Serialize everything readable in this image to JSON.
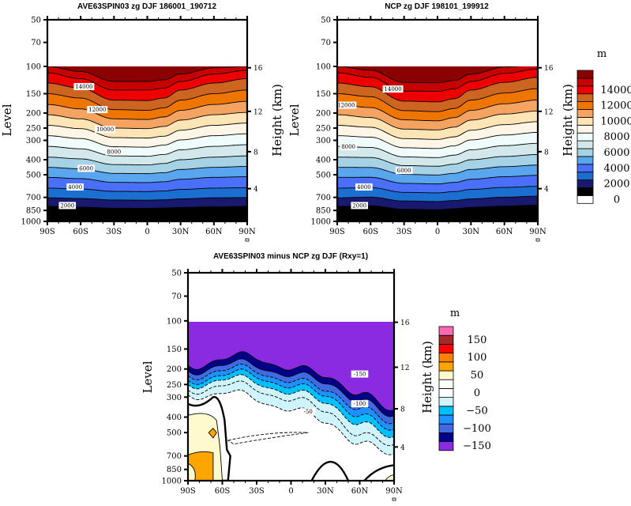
{
  "chart_data": [
    {
      "type": "heatmap",
      "name": "model-panel",
      "title": "AVE63SPIN03 zg DJF 186001_190712",
      "xlabel": "",
      "ylabel": "Level",
      "y2label": "Height (km)",
      "x_ticks": [
        "90S",
        "60S",
        "30S",
        "0",
        "30N",
        "60N",
        "90N"
      ],
      "x_values": [
        -90,
        -60,
        -30,
        0,
        30,
        60,
        90
      ],
      "y_ticks": [
        50,
        70,
        100,
        150,
        200,
        250,
        300,
        400,
        500,
        700,
        850,
        1000
      ],
      "y2_ticks": [
        4,
        8,
        12,
        16
      ],
      "ylim": [
        1000,
        50
      ],
      "yscale": "log",
      "data_top_level": 100,
      "grid": false,
      "variable": "zg (geopotential height, m)",
      "contour_interval": 1000,
      "contour_labels": [
        {
          "text": "14000",
          "lat": -57,
          "lev": 135
        },
        {
          "text": "12000",
          "lat": -45,
          "lev": 190
        },
        {
          "text": "10000",
          "lat": -38,
          "lev": 255
        },
        {
          "text": "8000",
          "lat": -30,
          "lev": 355
        },
        {
          "text": "6000",
          "lat": -55,
          "lev": 455
        },
        {
          "text": "4000",
          "lat": -65,
          "lev": 600
        },
        {
          "text": "2000",
          "lat": -72,
          "lev": 790
        }
      ],
      "profile_lat": [
        -90,
        -60,
        -30,
        0,
        15,
        30,
        60,
        90
      ],
      "profile_note": "contour heights at equator/poles: level of each isoline",
      "isolines": [
        {
          "value": 16000,
          "lev": [
            100,
            108,
            125,
            125,
            122,
            112,
            102,
            100
          ]
        },
        {
          "value": 15000,
          "lev": [
            110,
            120,
            142,
            142,
            138,
            125,
            112,
            106
          ]
        },
        {
          "value": 14000,
          "lev": [
            128,
            138,
            165,
            166,
            160,
            142,
            128,
            120
          ]
        },
        {
          "value": 13000,
          "lev": [
            150,
            160,
            190,
            192,
            185,
            165,
            150,
            142
          ]
        },
        {
          "value": 12000,
          "lev": [
            176,
            188,
            218,
            220,
            212,
            192,
            176,
            168
          ]
        },
        {
          "value": 11000,
          "lev": [
            205,
            218,
            250,
            252,
            244,
            222,
            205,
            198
          ]
        },
        {
          "value": 10000,
          "lev": [
            240,
            252,
            288,
            290,
            282,
            258,
            240,
            232
          ]
        },
        {
          "value": 9000,
          "lev": [
            280,
            292,
            330,
            332,
            322,
            298,
            280,
            272
          ]
        },
        {
          "value": 8000,
          "lev": [
            328,
            340,
            378,
            380,
            370,
            345,
            328,
            320
          ]
        },
        {
          "value": 7000,
          "lev": [
            385,
            395,
            430,
            432,
            423,
            400,
            385,
            378
          ]
        },
        {
          "value": 6000,
          "lev": [
            448,
            458,
            490,
            492,
            485,
            462,
            448,
            442
          ]
        },
        {
          "value": 5000,
          "lev": [
            520,
            530,
            560,
            562,
            555,
            535,
            520,
            515
          ]
        },
        {
          "value": 4000,
          "lev": [
            610,
            618,
            640,
            642,
            636,
            622,
            610,
            606
          ]
        },
        {
          "value": 3000,
          "lev": [
            705,
            712,
            728,
            730,
            726,
            716,
            705,
            702
          ]
        },
        {
          "value": 2000,
          "lev": [
            800,
            810,
            822,
            824,
            820,
            812,
            805,
            800
          ]
        },
        {
          "value": 1000,
          "lev": [
            905,
            910,
            922,
            924,
            920,
            914,
            908,
            905
          ]
        }
      ]
    },
    {
      "type": "heatmap",
      "name": "reference-panel",
      "title": "NCP zg DJF 198101_199912",
      "xlabel": "",
      "ylabel": "Level",
      "y2label": "Height (km)",
      "x_ticks": [
        "90S",
        "60S",
        "30S",
        "0",
        "30N",
        "60N",
        "90N"
      ],
      "x_values": [
        -90,
        -60,
        -30,
        0,
        30,
        60,
        90
      ],
      "y_ticks": [
        50,
        70,
        100,
        150,
        200,
        250,
        300,
        400,
        500,
        700,
        850,
        1000
      ],
      "y2_ticks": [
        4,
        8,
        12,
        16
      ],
      "ylim": [
        1000,
        50
      ],
      "yscale": "log",
      "data_top_level": 100,
      "grid": false,
      "variable": "zg (geopotential height, m)",
      "contour_interval": 1000,
      "contour_labels": [
        {
          "text": "14000",
          "lat": -40,
          "lev": 140
        },
        {
          "text": "12000",
          "lat": -82,
          "lev": 178
        },
        {
          "text": "8000",
          "lat": -80,
          "lev": 330
        },
        {
          "text": "6000",
          "lat": -30,
          "lev": 470
        },
        {
          "text": "4000",
          "lat": -66,
          "lev": 600
        },
        {
          "text": "2000",
          "lat": -70,
          "lev": 790
        }
      ],
      "colorbar": {
        "units": "m",
        "levels": [
          0,
          1000,
          2000,
          3000,
          4000,
          5000,
          6000,
          7000,
          8000,
          9000,
          10000,
          11000,
          12000,
          13000,
          14000,
          15000
        ],
        "labels": [
          "0",
          "2000",
          "4000",
          "6000",
          "8000",
          "10000",
          "12000",
          "14000"
        ],
        "colors": [
          "#ffffff",
          "#000000",
          "#191970",
          "#1a6fd0",
          "#4a6ff8",
          "#5aa6ee",
          "#a6d2e6",
          "#d2e8ea",
          "#f0fcfc",
          "#fdf5e6",
          "#ffe4b5",
          "#f4a460",
          "#ee7600",
          "#cd6420",
          "#ee0000",
          "#c80000",
          "#8b0000"
        ]
      }
    },
    {
      "type": "heatmap",
      "name": "difference-panel",
      "title": "AVE63SPIN03 minus NCP zg DJF (Rxy=1)",
      "xlabel": "",
      "ylabel": "Level",
      "y2label": "Height (km)",
      "x_ticks": [
        "90S",
        "60S",
        "30S",
        "0",
        "30N",
        "60N",
        "90N"
      ],
      "x_values": [
        -90,
        -60,
        -30,
        0,
        30,
        60,
        90
      ],
      "y_ticks": [
        50,
        70,
        100,
        150,
        200,
        250,
        300,
        400,
        500,
        700,
        850,
        1000
      ],
      "y2_ticks": [
        4,
        8,
        12,
        16
      ],
      "ylim": [
        1000,
        50
      ],
      "yscale": "log",
      "data_top_level": 100,
      "grid": false,
      "contour_labels": [
        {
          "text": "-150",
          "lat": 60,
          "lev": 215
        },
        {
          "text": "-100",
          "lat": 60,
          "lev": 330
        },
        {
          "text": "-50",
          "lat": 15,
          "lev": 370
        }
      ],
      "colorbar": {
        "units": "m",
        "levels": [
          -175,
          -150,
          -125,
          -100,
          -75,
          -50,
          -25,
          0,
          25,
          50,
          75,
          100,
          125,
          150
        ],
        "labels": [
          "-150",
          "-100",
          "-50",
          "0",
          "50",
          "100",
          "150"
        ],
        "colors": [
          "#8a2be2",
          "#00008b",
          "#4169e1",
          "#1e90ff",
          "#00bfff",
          "#d0f4fc",
          "#ffffff",
          "#ffffff",
          "#fffacd",
          "#ffa500",
          "#ff7f00",
          "#ff0000",
          "#a52a2a",
          "#ff69b4"
        ]
      }
    }
  ]
}
